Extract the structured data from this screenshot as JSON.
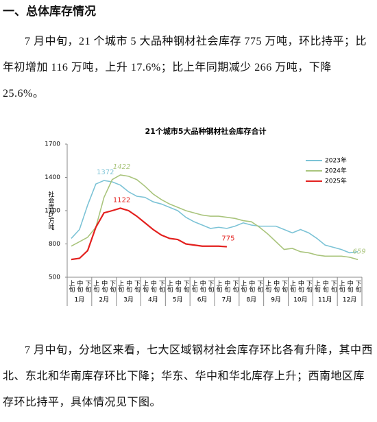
{
  "heading": "一、总体库存情况",
  "paragraphs": [
    "7 月中旬，21 个城市 5 大品种钢材社会库存 775 万吨，环比持平；比年初增加 116 万吨，上升 17.6%；比上年同期减少 266 万吨，下降 25.6%。",
    "7 月中旬，分地区来看，七大区域钢材社会库存环比各有升降，其中西北、东北和华南库存环比下降；华东、华中和华北库存上升；西南地区库存环比持平，具体情况见下图。"
  ],
  "chart_data": {
    "type": "line",
    "title": "21个城市5大品种钢材社会库存合计",
    "y_label": "社会库存/万吨",
    "categories": [
      "上旬",
      "中旬",
      "下旬",
      "上旬",
      "中旬",
      "下旬",
      "上旬",
      "中旬",
      "下旬",
      "上旬",
      "中旬",
      "下旬",
      "上旬",
      "中旬",
      "下旬",
      "上旬",
      "中旬",
      "下旬",
      "上旬",
      "中旬",
      "下旬",
      "上旬",
      "中旬",
      "下旬",
      "上旬",
      "中旬",
      "下旬",
      "上旬",
      "中旬",
      "下旬",
      "上旬",
      "中旬",
      "下旬",
      "上旬",
      "中旬",
      "下旬"
    ],
    "months": [
      "1月",
      "2月",
      "3月",
      "4月",
      "5月",
      "6月",
      "7月",
      "8月",
      "9月",
      "10月",
      "11月",
      "12月"
    ],
    "ylim": [
      500,
      1700
    ],
    "yticks": [
      500,
      800,
      1100,
      1400,
      1700
    ],
    "legend": "upper right",
    "series": [
      {
        "name": "2023年",
        "color": "#7cc3d6",
        "values": [
          850,
          930,
          1150,
          1340,
          1372,
          1360,
          1330,
          1270,
          1230,
          1220,
          1180,
          1160,
          1130,
          1100,
          1040,
          1000,
          970,
          940,
          950,
          940,
          960,
          990,
          970,
          960,
          960,
          960,
          930,
          900,
          930,
          900,
          850,
          790,
          770,
          750,
          720,
          730
        ],
        "value_labels": [
          null,
          null,
          null,
          null,
          "1372",
          null,
          null,
          null,
          null,
          null,
          null,
          null,
          null,
          null,
          null,
          null,
          null,
          null,
          null,
          null,
          null,
          null,
          null,
          null,
          null,
          null,
          null,
          null,
          null,
          null,
          null,
          null,
          null,
          null,
          null,
          null
        ]
      },
      {
        "name": "2024年",
        "color": "#a9c47c",
        "values": [
          780,
          820,
          860,
          950,
          1220,
          1380,
          1422,
          1410,
          1380,
          1320,
          1250,
          1200,
          1160,
          1130,
          1100,
          1080,
          1060,
          1050,
          1050,
          1040,
          1030,
          1010,
          1000,
          950,
          890,
          820,
          750,
          760,
          730,
          720,
          700,
          690,
          690,
          690,
          680,
          659
        ],
        "value_labels": [
          null,
          null,
          null,
          null,
          null,
          null,
          "1422",
          null,
          null,
          null,
          null,
          null,
          null,
          null,
          null,
          null,
          null,
          null,
          null,
          null,
          null,
          null,
          null,
          null,
          null,
          null,
          null,
          null,
          null,
          null,
          null,
          null,
          null,
          null,
          null,
          "659"
        ]
      },
      {
        "name": "2025年",
        "color": "#e3201e",
        "values": [
          660,
          670,
          740,
          950,
          1080,
          1100,
          1122,
          1100,
          1050,
          990,
          930,
          880,
          850,
          840,
          800,
          790,
          780,
          780,
          780,
          775,
          null,
          null,
          null,
          null,
          null,
          null,
          null,
          null,
          null,
          null,
          null,
          null,
          null,
          null,
          null,
          null
        ],
        "value_labels": [
          null,
          null,
          null,
          null,
          null,
          null,
          "1122",
          null,
          null,
          null,
          null,
          null,
          null,
          null,
          null,
          null,
          null,
          null,
          null,
          "775",
          null,
          null,
          null,
          null,
          null,
          null,
          null,
          null,
          null,
          null,
          null,
          null,
          null,
          null,
          null,
          null
        ]
      }
    ]
  }
}
